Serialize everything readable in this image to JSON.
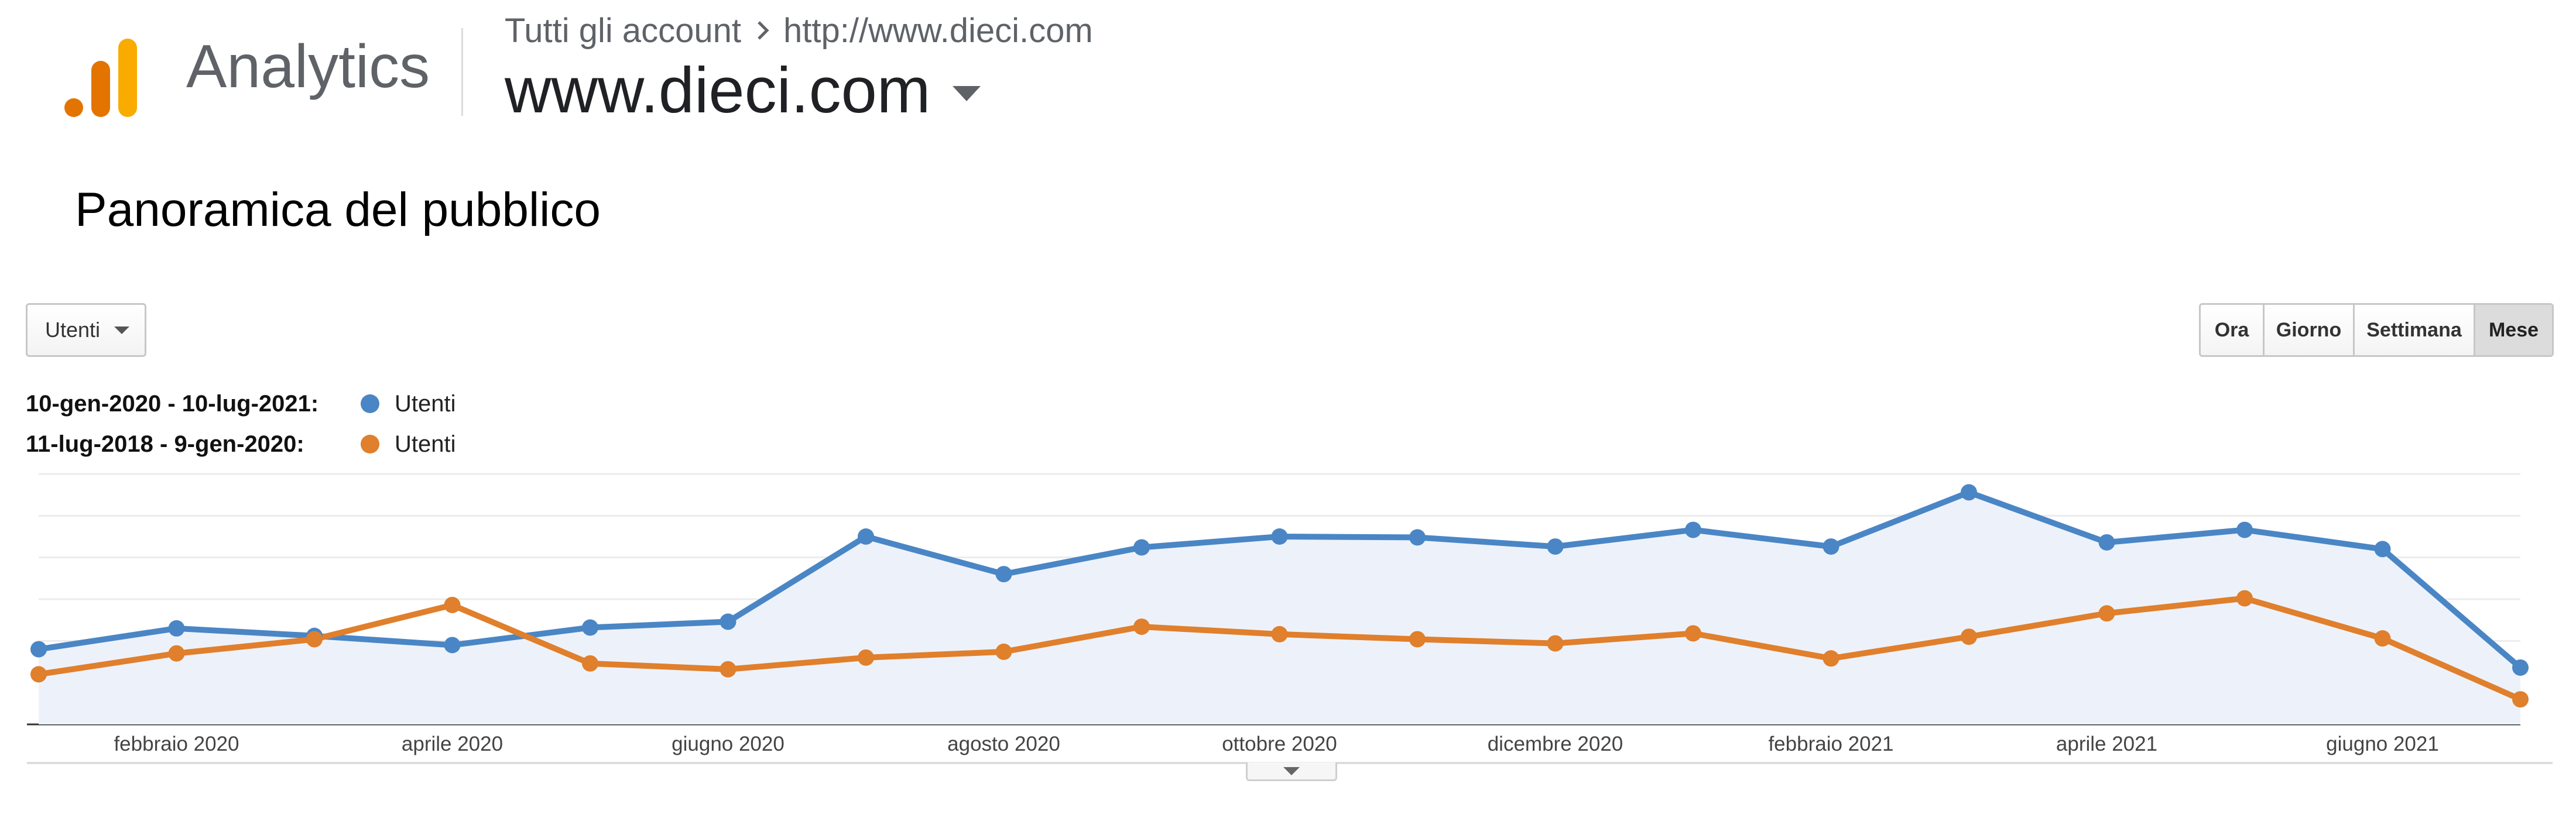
{
  "header": {
    "app_name": "Analytics",
    "breadcrumb": {
      "root": "Tutti gli account",
      "account": "http://www.dieci.com"
    },
    "property": "www.dieci.com",
    "icons": [
      "analytics-logo-icon",
      "chevron-right-icon",
      "caret-down-icon"
    ],
    "logo_colors": [
      "#e37400",
      "#e8a33d",
      "#f9ab00"
    ]
  },
  "page": {
    "title": "Panoramica del pubblico"
  },
  "controls": {
    "metric_selected": "Utenti",
    "granularity": [
      {
        "label": "Ora",
        "active": false
      },
      {
        "label": "Giorno",
        "active": false
      },
      {
        "label": "Settimana",
        "active": false
      },
      {
        "label": "Mese",
        "active": true
      }
    ]
  },
  "legend": [
    {
      "range": "10-gen-2020 - 10-lug-2021:",
      "metric": "Utenti",
      "color": "#4a86c5"
    },
    {
      "range": "11-lug-2018 - 9-gen-2020:",
      "metric": "Utenti",
      "color": "#e07f2c"
    }
  ],
  "chart_data": {
    "type": "line",
    "x": [
      "gennaio 2020",
      "febbraio 2020",
      "marzo 2020",
      "aprile 2020",
      "maggio 2020",
      "giugno 2020",
      "luglio 2020",
      "agosto 2020",
      "settembre 2020",
      "ottobre 2020",
      "novembre 2020",
      "dicembre 2020",
      "gennaio 2021",
      "febbraio 2021",
      "marzo 2021",
      "aprile 2021",
      "maggio 2021",
      "giugno 2021",
      "luglio 2021"
    ],
    "tick_labels": [
      "febbraio 2020",
      "aprile 2020",
      "giugno 2020",
      "agosto 2020",
      "ottobre 2020",
      "dicembre 2020",
      "febbraio 2021",
      "aprile 2021",
      "giugno 2021"
    ],
    "tick_indices": [
      1,
      3,
      5,
      7,
      9,
      11,
      13,
      15,
      17
    ],
    "ylim": [
      0,
      300
    ],
    "grid": true,
    "series": [
      {
        "name": "Utenti",
        "color": "#4a86c5",
        "fill": "#edf2fa",
        "values": [
          90,
          115,
          106,
          95,
          116,
          123,
          225,
          180,
          212,
          225,
          224,
          213,
          233,
          213,
          278,
          218,
          233,
          210,
          68
        ]
      },
      {
        "name": "Utenti",
        "color": "#e07f2c",
        "values": [
          60,
          85,
          102,
          143,
          73,
          66,
          80,
          87,
          117,
          108,
          102,
          97,
          109,
          79,
          105,
          133,
          151,
          103,
          30
        ]
      }
    ]
  }
}
